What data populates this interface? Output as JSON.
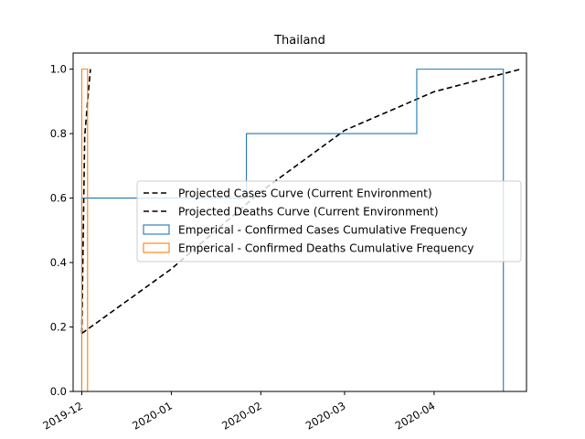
{
  "chart_data": {
    "type": "line",
    "title": "Thailand",
    "xlabel": "",
    "ylabel": "",
    "x_axis": {
      "type": "date",
      "range": [
        "2019-11-28",
        "2020-05-03"
      ],
      "ticks": [
        {
          "date": "2019-12-01",
          "label": "2019-12"
        },
        {
          "date": "2020-01-01",
          "label": "2020-01"
        },
        {
          "date": "2020-02-01",
          "label": "2020-02"
        },
        {
          "date": "2020-03-01",
          "label": "2020-03"
        },
        {
          "date": "2020-04-01",
          "label": "2020-04"
        }
      ]
    },
    "y_axis": {
      "range": [
        0,
        1.05
      ],
      "ticks": [
        {
          "value": 0.0,
          "label": "0.0"
        },
        {
          "value": 0.2,
          "label": "0.2"
        },
        {
          "value": 0.4,
          "label": "0.4"
        },
        {
          "value": 0.6,
          "label": "0.6"
        },
        {
          "value": 0.8,
          "label": "0.8"
        },
        {
          "value": 1.0,
          "label": "1.0"
        }
      ]
    },
    "grid": false,
    "legend_position": "center-right",
    "series": [
      {
        "name": "Projected Cases Curve (Current Environment)",
        "kind": "line",
        "style": "dashed",
        "color": "#000000",
        "x": [
          "2019-12-01",
          "2020-01-01",
          "2020-02-01",
          "2020-03-01",
          "2020-04-01",
          "2020-05-01"
        ],
        "y": [
          0.18,
          0.38,
          0.62,
          0.81,
          0.93,
          1.0
        ]
      },
      {
        "name": "Projected Deaths Curve (Current Environment)",
        "kind": "line",
        "style": "dashed",
        "color": "#000000",
        "x": [
          "2019-12-01",
          "2019-12-02",
          "2019-12-03",
          "2019-12-04"
        ],
        "y": [
          0.18,
          0.79,
          0.9,
          1.0
        ]
      },
      {
        "name": "Emperical - Confirmed Cases Cumulative Frequency",
        "kind": "step",
        "color": "#1f77b4",
        "x": [
          "2019-12-01",
          "2020-01-27",
          "2020-03-26",
          "2020-04-25"
        ],
        "y": [
          0.6,
          0.8,
          1.0,
          1.0
        ]
      },
      {
        "name": "Emperical - Confirmed Deaths Cumulative Frequency",
        "kind": "step",
        "color": "#ff7f0e",
        "x": [
          "2019-12-01",
          "2019-12-03"
        ],
        "y": [
          1.0,
          1.0
        ]
      }
    ]
  }
}
